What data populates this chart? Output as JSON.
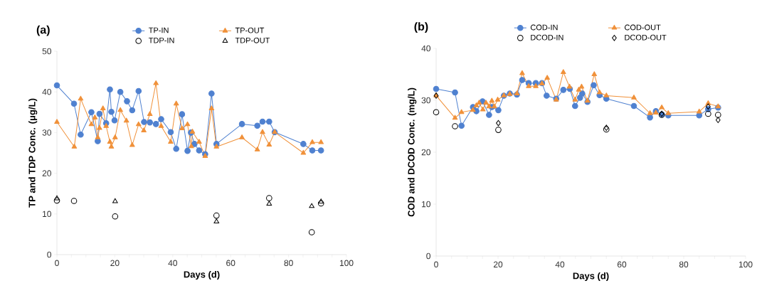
{
  "chart_data": [
    {
      "type": "line",
      "title": "(a)",
      "xlabel": "Days (d)",
      "ylabel": "TP and TDP Conc. (μg/L)",
      "xlim": [
        0,
        100
      ],
      "ylim": [
        0,
        50
      ],
      "xticks": [
        0,
        {
          "value": 5,
          "label": null
        },
        {
          "value": 10,
          "label": null
        },
        {
          "value": 15,
          "label": null
        },
        20,
        {
          "value": 25,
          "label": null
        },
        {
          "value": 30,
          "label": null
        },
        {
          "value": 35,
          "label": null
        },
        40,
        {
          "value": 45,
          "label": null
        },
        {
          "value": 50,
          "label": null
        },
        {
          "value": 55,
          "label": null
        },
        60,
        {
          "value": 65,
          "label": null
        },
        {
          "value": 70,
          "label": null
        },
        {
          "value": 75,
          "label": null
        },
        80,
        {
          "value": 85,
          "label": null
        },
        {
          "value": 90,
          "label": null
        },
        {
          "value": 95,
          "label": null
        },
        100
      ],
      "yticks": [
        0,
        10,
        20,
        30,
        40,
        50
      ],
      "legend": "top",
      "grid": false,
      "series": [
        {
          "name": "TP-IN",
          "marker": "circle",
          "color": "#4f81d0",
          "x": [
            0,
            5.9,
            8.2,
            11.9,
            14.1,
            14.7,
            17.0,
            18.3,
            18.8,
            19.9,
            21.9,
            24.2,
            26.0,
            28.2,
            30.1,
            32.1,
            34.2,
            36.0,
            39.3,
            41.2,
            43.2,
            45.1,
            46.3,
            47.5,
            49.1,
            51.2,
            53.4,
            55.1,
            63.9,
            69.2,
            71.0,
            73.3,
            75.2,
            85.1,
            88.2,
            91.2
          ],
          "values": [
            41.6,
            37.1,
            29.5,
            35.0,
            27.9,
            34.6,
            32.3,
            40.6,
            35.1,
            33.0,
            40.0,
            37.7,
            35.5,
            40.2,
            32.6,
            32.5,
            32.1,
            33.3,
            30.1,
            26.0,
            34.5,
            25.5,
            30.0,
            27.2,
            25.6,
            24.7,
            39.6,
            27.2,
            32.1,
            31.7,
            32.7,
            32.7,
            30.1,
            27.2,
            25.6,
            25.6
          ]
        },
        {
          "name": "TP-OUT",
          "marker": "triangle",
          "color": "#f0913a",
          "x": [
            0,
            6.0,
            8.2,
            11.9,
            13.1,
            14.1,
            14.7,
            15.9,
            17.0,
            18.3,
            18.8,
            20.1,
            21.9,
            24.0,
            26.0,
            28.2,
            30.0,
            32.1,
            34.2,
            36.0,
            39.3,
            41.2,
            43.2,
            45.1,
            46.4,
            46.8,
            49.1,
            51.2,
            53.4,
            55.1,
            63.9,
            69.2,
            71.0,
            73.3,
            75.2,
            85.1,
            88.2,
            91.2
          ],
          "values": [
            32.6,
            26.5,
            38.3,
            32.0,
            33.7,
            28.8,
            31.1,
            35.9,
            31.6,
            27.7,
            26.5,
            28.8,
            35.5,
            32.9,
            26.9,
            32.0,
            30.5,
            34.5,
            42.1,
            31.6,
            27.7,
            37.1,
            31.0,
            32.0,
            26.6,
            30.2,
            27.7,
            24.2,
            35.9,
            26.5,
            28.8,
            25.8,
            30.1,
            27.0,
            30.1,
            25.0,
            27.6,
            27.6
          ]
        },
        {
          "name": "TDP-IN",
          "type": "scatter",
          "marker": "circle",
          "color": "#000000",
          "x": [
            0,
            5.9,
            20.1,
            55.1,
            73.3,
            88.0,
            91.2
          ],
          "values": [
            13.3,
            13.2,
            9.4,
            9.6,
            13.9,
            5.5,
            12.6
          ]
        },
        {
          "name": "TDP-OUT",
          "type": "scatter",
          "marker": "triangle",
          "color": "#000000",
          "x": [
            0,
            20.1,
            55.1,
            73.3,
            88.0,
            91.2
          ],
          "values": [
            13.8,
            13.1,
            8.1,
            12.5,
            11.9,
            13.0
          ]
        }
      ]
    },
    {
      "type": "line",
      "title": "(b)",
      "xlabel": "Days (d)",
      "ylabel": "COD and DCOD Conc. (mg/L)",
      "xlim": [
        0,
        100
      ],
      "ylim": [
        0,
        40
      ],
      "xticks": [
        0,
        {
          "value": 5,
          "label": null
        },
        {
          "value": 10,
          "label": null
        },
        {
          "value": 15,
          "label": null
        },
        20,
        {
          "value": 25,
          "label": null
        },
        {
          "value": 30,
          "label": null
        },
        {
          "value": 35,
          "label": null
        },
        40,
        {
          "value": 45,
          "label": null
        },
        {
          "value": 50,
          "label": null
        },
        {
          "value": 55,
          "label": null
        },
        60,
        {
          "value": 65,
          "label": null
        },
        {
          "value": 70,
          "label": null
        },
        {
          "value": 75,
          "label": null
        },
        80,
        {
          "value": 85,
          "label": null
        },
        {
          "value": 90,
          "label": null
        },
        {
          "value": 95,
          "label": null
        },
        100
      ],
      "yticks": [
        0,
        10,
        20,
        30,
        40
      ],
      "legend": "top",
      "grid": false,
      "series": [
        {
          "name": "COD-IN",
          "marker": "circle",
          "color": "#4f81d0",
          "x": [
            0,
            6.1,
            8.2,
            11.9,
            13.0,
            15.0,
            17.1,
            18.0,
            20.1,
            21.9,
            23.8,
            26.1,
            27.8,
            29.9,
            32.2,
            34.2,
            35.7,
            38.8,
            41.1,
            43.2,
            44.9,
            46.5,
            47.2,
            48.9,
            50.9,
            52.8,
            55.0,
            63.9,
            69.1,
            71.0,
            72.9,
            75.0,
            85.0,
            87.9,
            91.1
          ],
          "values": [
            32.2,
            31.5,
            25.1,
            28.7,
            27.9,
            29.8,
            27.2,
            28.7,
            28.1,
            30.9,
            31.3,
            31.1,
            33.9,
            33.3,
            33.3,
            33.3,
            30.9,
            30.3,
            32.0,
            32.2,
            28.9,
            30.5,
            31.3,
            29.7,
            32.9,
            31.0,
            30.3,
            28.9,
            26.7,
            27.9,
            27.3,
            27.1,
            27.1,
            28.3,
            28.6
          ]
        },
        {
          "name": "COD-OUT",
          "marker": "triangle",
          "color": "#f0913a",
          "x": [
            0,
            6.1,
            8.2,
            11.9,
            13.0,
            13.9,
            15.1,
            16.1,
            17.1,
            18.0,
            18.8,
            19.9,
            21.9,
            23.8,
            26.1,
            27.8,
            29.9,
            32.2,
            34.2,
            35.9,
            38.8,
            41.1,
            43.1,
            44.9,
            46.1,
            47.0,
            48.9,
            51.1,
            52.8,
            55.0,
            63.9,
            69.1,
            71.0,
            72.9,
            75.0,
            85.0,
            87.9,
            91.1
          ],
          "values": [
            30.9,
            26.6,
            27.7,
            28.1,
            29.0,
            29.5,
            28.2,
            29.5,
            28.8,
            29.9,
            28.8,
            30.1,
            30.9,
            31.2,
            31.3,
            35.2,
            32.7,
            32.7,
            33.2,
            34.3,
            30.1,
            35.4,
            32.6,
            30.1,
            32.0,
            32.6,
            29.9,
            35.0,
            31.5,
            30.9,
            30.5,
            27.5,
            27.6,
            28.6,
            27.5,
            27.8,
            29.4,
            28.8
          ]
        },
        {
          "name": "DCOD-IN",
          "type": "scatter",
          "marker": "circle",
          "color": "#000000",
          "x": [
            0,
            6.1,
            20.1,
            55.0,
            72.9,
            87.9,
            91.1
          ],
          "values": [
            27.7,
            25.0,
            24.3,
            24.4,
            27.2,
            27.4,
            27.2
          ]
        },
        {
          "name": "DCOD-OUT",
          "type": "scatter",
          "marker": "diamond",
          "color": "#000000",
          "x": [
            0,
            20.1,
            55.0,
            72.9,
            87.9,
            91.1
          ],
          "values": [
            30.9,
            25.6,
            24.7,
            27.4,
            28.8,
            26.2
          ]
        }
      ]
    }
  ]
}
